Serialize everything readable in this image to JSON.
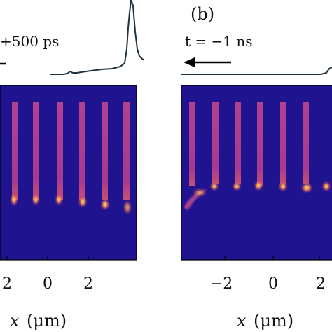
{
  "figure": {
    "panels": [
      {
        "id": "a",
        "label": "",
        "time_label": "+500 ps",
        "x_tick_labels": [
          "2",
          "0",
          "2"
        ],
        "x_axis_var": "x",
        "x_axis_unit": "(μm)"
      },
      {
        "id": "b",
        "label": "(b)",
        "time_label": "t = −1 ns",
        "x_tick_labels": [
          "−2",
          "0",
          "2"
        ],
        "x_axis_var": "x",
        "x_axis_unit": "(μm)"
      }
    ],
    "colors": {
      "background_map": "#1f138f",
      "column": "#a83a8e",
      "hotspot": "#ffd064",
      "trace": "#1d3342",
      "frame": "#000000"
    }
  }
}
